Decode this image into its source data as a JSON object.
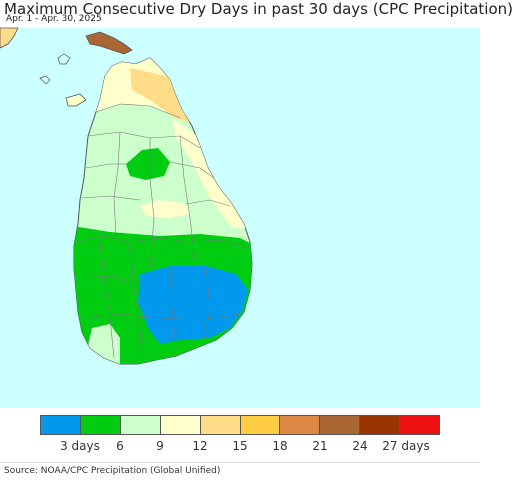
{
  "header": {
    "title": "Maximum Consecutive Dry Days in past 30 days (CPC Precipitation)",
    "date_range": "Apr. 1 - Apr. 30, 2025"
  },
  "map": {
    "region": "Sri Lanka",
    "ocean_color": "#ccffff",
    "border_color": "#555555"
  },
  "legend": {
    "colors": [
      "#0099ee",
      "#00cc11",
      "#ccffcc",
      "#ffffcc",
      "#ffdd88",
      "#ffcc44",
      "#dd8844",
      "#aa6633",
      "#993300",
      "#ee1111"
    ],
    "labels": [
      "3 days",
      "6",
      "9",
      "12",
      "15",
      "18",
      "21",
      "24",
      "27 days"
    ]
  },
  "footer": {
    "source": "Source: NOAA/CPC Precipitation (Global Unified)"
  }
}
